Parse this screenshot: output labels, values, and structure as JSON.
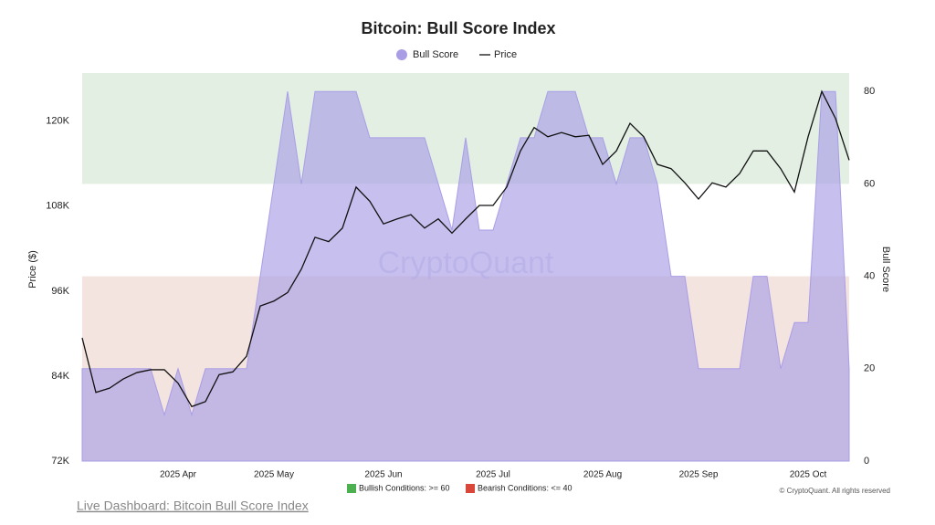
{
  "chart_data": {
    "type": "area-line",
    "title": "Bitcoin: Bull Score Index",
    "ylabel": "Price ($)",
    "y2label": "Bull Score",
    "watermark": "CryptoQuant",
    "copyright": "© CryptoQuant. All rights reserved",
    "link": "Live Dashboard: Bitcoin Bull Score Index",
    "bullish": {
      "label": "Bullish Conditions: >= 60",
      "threshold": 60,
      "color": "#4caf50",
      "zone_color": "#e3efe3"
    },
    "bearish": {
      "label": "Bearish Conditions: <= 40",
      "threshold": 40,
      "color": "#d9463a",
      "zone_color": "#f4e4df"
    },
    "categories": [
      null,
      null,
      null,
      null,
      null,
      null,
      null,
      "2025 Apr",
      null,
      null,
      null,
      null,
      null,
      null,
      "2025 May",
      null,
      null,
      null,
      null,
      null,
      null,
      null,
      "2025 Jun",
      null,
      null,
      null,
      null,
      null,
      null,
      null,
      "2025 Jul",
      null,
      null,
      null,
      null,
      null,
      null,
      null,
      "2025 Aug",
      null,
      null,
      null,
      null,
      null,
      null,
      "2025 Sep",
      null,
      null,
      null,
      null,
      null,
      null,
      null,
      "2025 Oct",
      null,
      null,
      null
    ],
    "series": [
      {
        "name": "Bull Score",
        "axis": "y2",
        "color": "#a99ee6",
        "values": [
          20,
          20,
          20,
          20,
          20,
          20,
          10,
          20,
          10,
          20,
          20,
          20,
          20,
          40,
          60,
          80,
          60,
          80,
          80,
          80,
          80,
          70,
          70,
          70,
          70,
          70,
          60,
          50,
          70,
          50,
          50,
          60,
          70,
          70,
          80,
          80,
          80,
          70,
          70,
          60,
          70,
          70,
          60,
          40,
          40,
          20,
          20,
          20,
          20,
          40,
          40,
          20,
          30,
          30,
          80,
          80,
          20
        ]
      },
      {
        "name": "Price",
        "axis": "y",
        "color": "#111111",
        "values": [
          89400,
          81700,
          82300,
          83600,
          84500,
          84900,
          84900,
          83000,
          79700,
          80400,
          84200,
          84600,
          86800,
          93900,
          94600,
          95800,
          99100,
          103600,
          103000,
          104900,
          110700,
          108700,
          105500,
          106200,
          106800,
          104900,
          106200,
          104200,
          106200,
          108100,
          108100,
          110700,
          115800,
          119100,
          117800,
          118400,
          117800,
          118000,
          113900,
          115800,
          119700,
          117800,
          113900,
          113300,
          111300,
          109000,
          111300,
          110700,
          112600,
          115800,
          115800,
          113300,
          110000,
          117800,
          124200,
          120400,
          114500
        ]
      }
    ],
    "ylim": [
      72000,
      126800
    ],
    "yticks": [
      {
        "value": 72000,
        "label": "72K"
      },
      {
        "value": 84000,
        "label": "84K"
      },
      {
        "value": 96000,
        "label": "96K"
      },
      {
        "value": 108000,
        "label": "108K"
      },
      {
        "value": 120000,
        "label": "120K"
      }
    ],
    "y2lim": [
      0,
      84
    ],
    "y2ticks": [
      0,
      20,
      40,
      60,
      80
    ]
  }
}
